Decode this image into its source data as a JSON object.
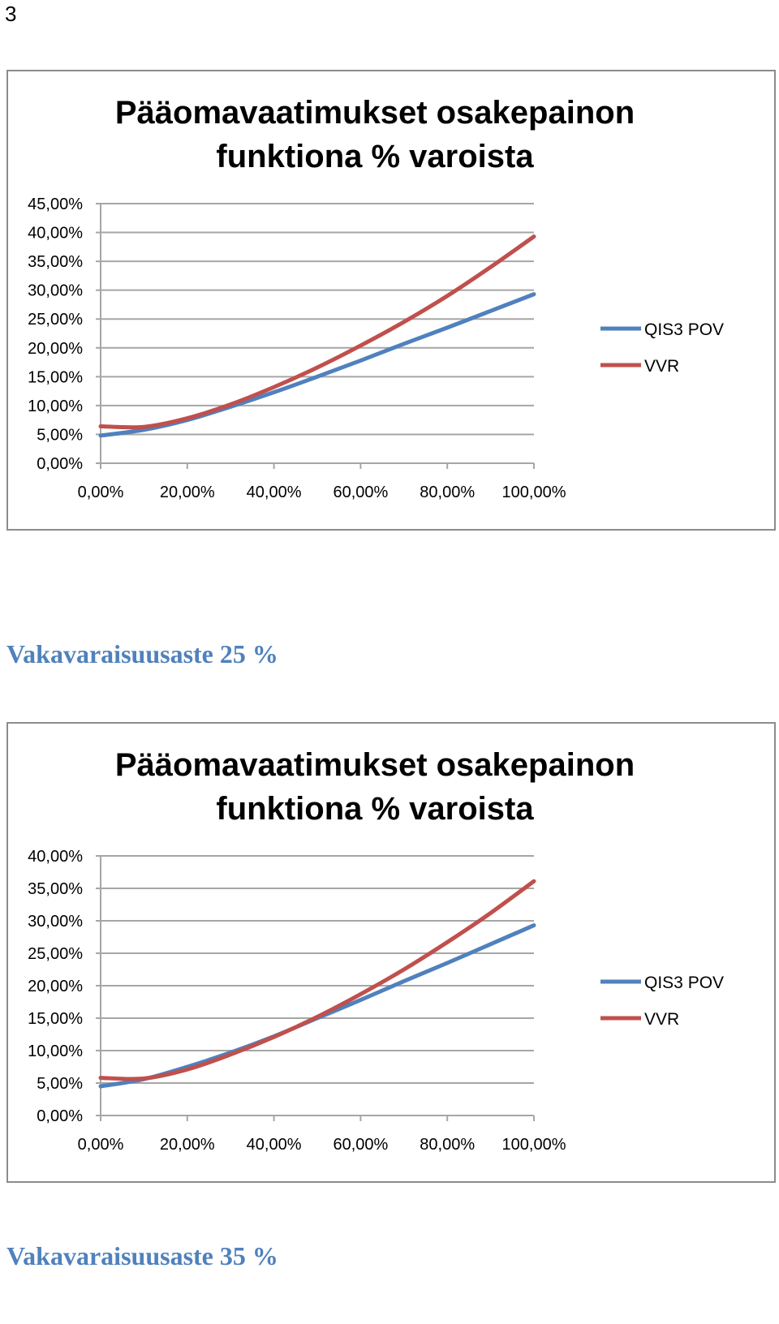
{
  "page_number": "3",
  "headings": [
    "Vakavaraisuusaste 25 %",
    "Vakavaraisuusaste 35 %"
  ],
  "colors": {
    "series_1": "#4f81bd",
    "series_2": "#c0504d",
    "grid": "#a6a6a6",
    "border": "#8c8c8c"
  },
  "chart_data": [
    {
      "type": "line",
      "title_lines": [
        "Pääomavaatimukset osakepainon",
        "funktiona % varoista"
      ],
      "x_tick_labels": [
        "0,00%",
        "20,00%",
        "40,00%",
        "60,00%",
        "80,00%",
        "100,00%"
      ],
      "y_tick_labels": [
        "0,00%",
        "5,00%",
        "10,00%",
        "15,00%",
        "20,00%",
        "25,00%",
        "30,00%",
        "35,00%",
        "40,00%",
        "45,00%"
      ],
      "xlim": [
        0,
        100
      ],
      "ylim": [
        0,
        45
      ],
      "x": [
        0,
        10,
        20,
        30,
        40,
        50,
        60,
        70,
        80,
        90,
        100
      ],
      "series": [
        {
          "name": "QIS3 POV",
          "values": [
            4.8,
            5.8,
            7.5,
            9.8,
            12.3,
            15.0,
            17.8,
            20.7,
            23.5,
            26.4,
            29.3
          ]
        },
        {
          "name": "VVR",
          "values": [
            6.4,
            6.3,
            7.8,
            10.2,
            13.2,
            16.6,
            20.4,
            24.5,
            29.0,
            34.0,
            39.3
          ]
        }
      ],
      "legend_position": "right",
      "grid": true
    },
    {
      "type": "line",
      "title_lines": [
        "Pääomavaatimukset osakepainon",
        "funktiona % varoista"
      ],
      "x_tick_labels": [
        "0,00%",
        "20,00%",
        "40,00%",
        "60,00%",
        "80,00%",
        "100,00%"
      ],
      "y_tick_labels": [
        "0,00%",
        "5,00%",
        "10,00%",
        "15,00%",
        "20,00%",
        "25,00%",
        "30,00%",
        "35,00%",
        "40,00%"
      ],
      "xlim": [
        0,
        100
      ],
      "ylim": [
        0,
        40
      ],
      "x": [
        0,
        10,
        20,
        30,
        40,
        50,
        60,
        70,
        80,
        90,
        100
      ],
      "series": [
        {
          "name": "QIS3 POV",
          "values": [
            4.5,
            5.6,
            7.5,
            9.7,
            12.2,
            15.0,
            17.8,
            20.7,
            23.5,
            26.4,
            29.3
          ]
        },
        {
          "name": "VVR",
          "values": [
            5.8,
            5.7,
            7.1,
            9.4,
            12.1,
            15.2,
            18.7,
            22.5,
            26.7,
            31.2,
            36.1
          ]
        }
      ],
      "legend_position": "right",
      "grid": true
    }
  ]
}
